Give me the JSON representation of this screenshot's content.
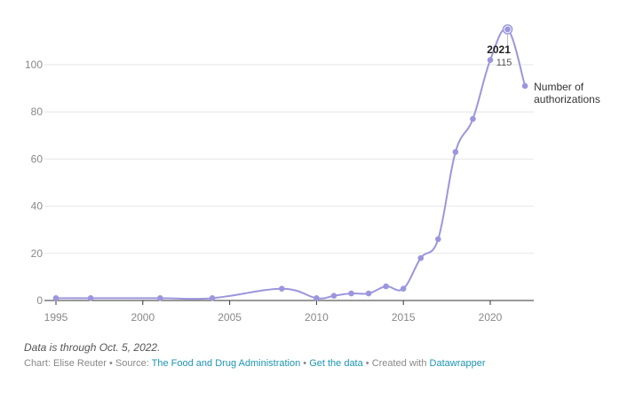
{
  "chart_data": {
    "type": "line",
    "title": "",
    "xlabel": "",
    "ylabel": "",
    "xlim": [
      1995,
      2022
    ],
    "ylim": [
      0,
      115
    ],
    "x_ticks": [
      "1995",
      "2000",
      "2005",
      "2010",
      "2015",
      "2020"
    ],
    "y_ticks": [
      "0",
      "20",
      "40",
      "60",
      "80",
      "100"
    ],
    "grid": true,
    "series": [
      {
        "name": "Number of authorizations",
        "color": "#9b96dd",
        "x": [
          1995,
          1997,
          2001,
          2004,
          2008,
          2010,
          2011,
          2012,
          2013,
          2014,
          2015,
          2016,
          2017,
          2018,
          2019,
          2020,
          2021,
          2022
        ],
        "y": [
          1,
          1,
          1,
          1,
          5,
          1,
          2,
          3,
          3,
          6,
          5,
          18,
          26,
          63,
          77,
          102,
          115,
          91
        ]
      }
    ],
    "highlight": {
      "year": "2021",
      "value": "115"
    }
  },
  "notes": "Data is through Oct. 5, 2022.",
  "footer": {
    "chart_by": "Chart: Elise Reuter",
    "sep1": " • Source: ",
    "source_link": "The Food and Drug Administration",
    "sep2": " • ",
    "data_link": "Get the data",
    "sep3": " • Created with ",
    "tool_link": "Datawrapper"
  }
}
